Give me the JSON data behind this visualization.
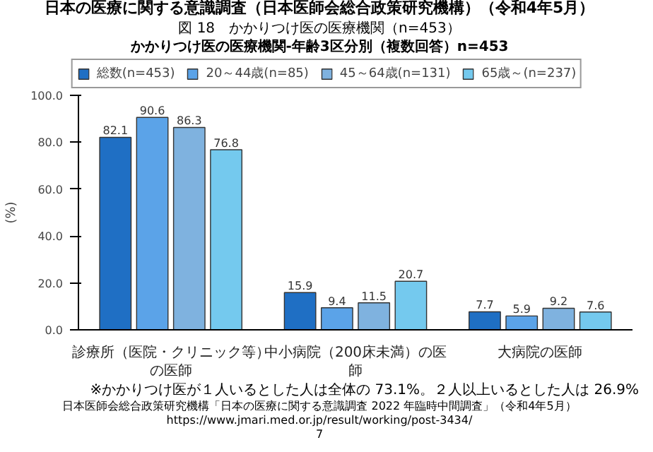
{
  "chart_data": {
    "type": "bar",
    "title": "日本の医療に関する意識調査（日本医師会総合政策研究機構）（令和4年5月）",
    "subtitle": "図 18　かかりつけ医の医療機関（n=453）",
    "categories": [
      "診療所（医院・クリニック等）の医師",
      "中小病院（200床未満）の医師",
      "大病院の医師"
    ],
    "series": [
      {
        "name": "総数(n=453)",
        "color": "#1f6fc4",
        "values": [
          82.1,
          15.9,
          7.7
        ]
      },
      {
        "name": "20～44歳(n=85)",
        "color": "#5ba3e8",
        "values": [
          90.6,
          9.4,
          5.9
        ]
      },
      {
        "name": "45～64歳(n=131)",
        "color": "#7fb2df",
        "values": [
          86.3,
          11.5,
          9.2
        ]
      },
      {
        "name": "65歳～(n=237)",
        "color": "#74c9ee",
        "values": [
          76.8,
          20.7,
          7.6
        ]
      }
    ],
    "ylabel": "(%)",
    "ylim": [
      0,
      100
    ],
    "yticks": [
      {
        "value": 0,
        "label": "0.0"
      },
      {
        "value": 20,
        "label": "20.0"
      },
      {
        "value": 40,
        "label": "40.0"
      },
      {
        "value": 60,
        "label": "60.0"
      },
      {
        "value": 80,
        "label": "80.0"
      },
      {
        "value": 100,
        "label": "100.0"
      }
    ],
    "data_labels": true,
    "legend": "top",
    "grid": false,
    "annotations": [
      "かかりつけ医の医療機関-年齢3区分別（複数回答）n=453",
      "※かかりつけ医が１人いるとした人は全体の 73.1%。２人以上いるとした人は 26.9%",
      "日本医師会総合政策研究機構「日本の医療に関する意識調査 2022 年臨時中間調査」（令和4年5月）",
      "https://www.jmari.med.or.jp/result/working/post-3434/",
      "7"
    ]
  }
}
